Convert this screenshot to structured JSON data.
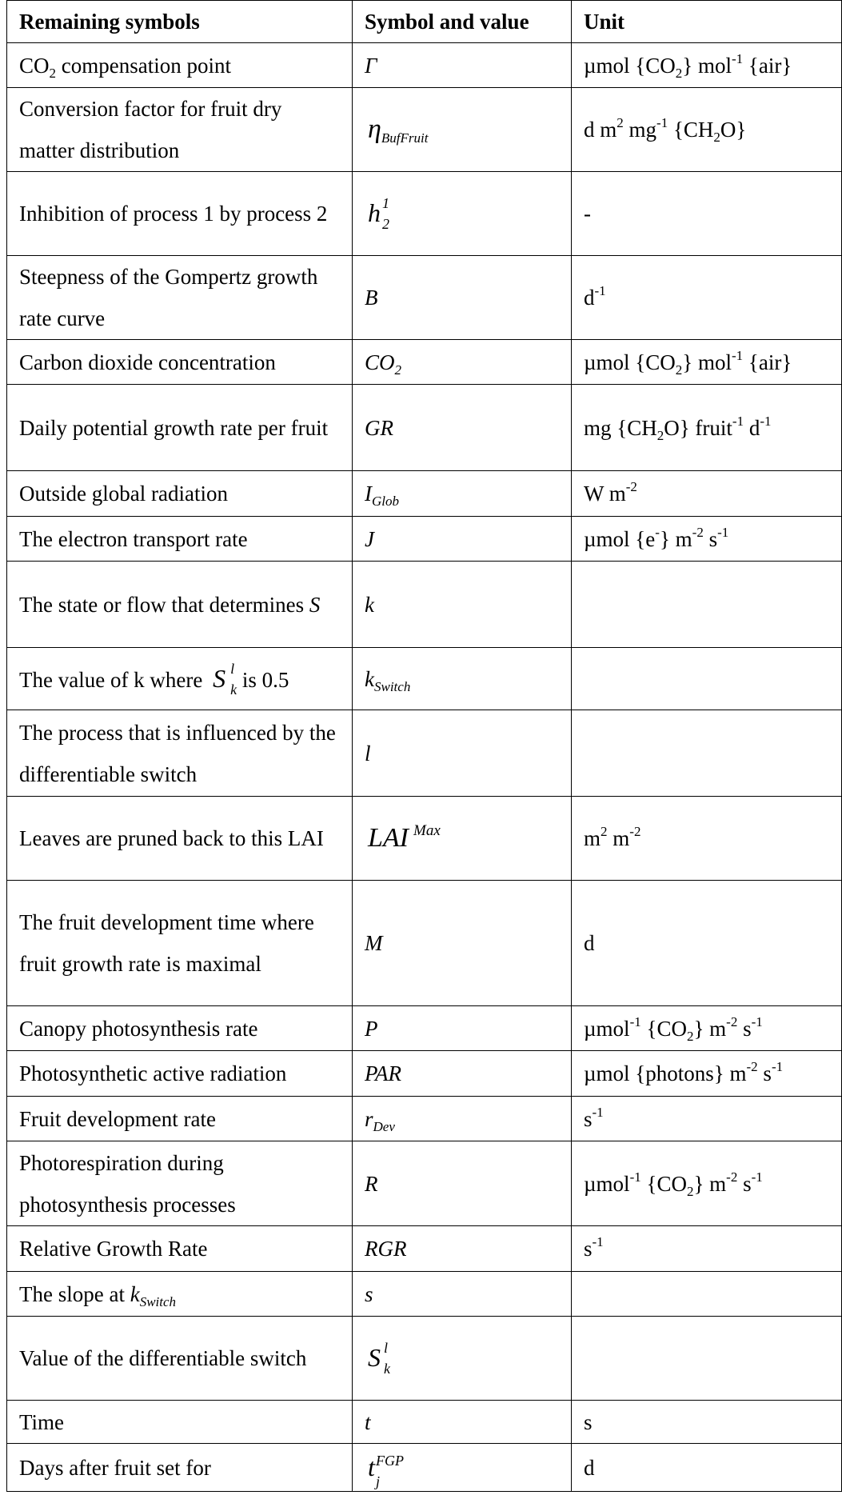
{
  "headers": {
    "col1": "Remaining symbols",
    "col2": "Symbol and value",
    "col3": "Unit"
  },
  "rows": [
    {
      "name": "CO₂ compensation point",
      "symbol": "Γ",
      "unit": "µmol {CO₂} mol⁻¹ {air}"
    },
    {
      "name": "Conversion factor for fruit dry matter distribution",
      "symbol": "η_BufFruit",
      "unit": "d m² mg⁻¹ {CH₂O}"
    },
    {
      "name": "Inhibition of process 1 by process 2",
      "symbol": "h₂¹",
      "unit": "-"
    },
    {
      "name": "Steepness of the Gompertz growth rate curve",
      "symbol": "B",
      "unit": "d⁻¹"
    },
    {
      "name": "Carbon dioxide concentration",
      "symbol": "CO₂",
      "unit": "µmol {CO₂} mol⁻¹ {air}"
    },
    {
      "name": "Daily potential growth rate per fruit",
      "symbol": "GR",
      "unit": "mg {CH₂O} fruit⁻¹ d⁻¹"
    },
    {
      "name": "Outside global radiation",
      "symbol": "I_Glob",
      "unit": "W m⁻²"
    },
    {
      "name": "The electron transport rate",
      "symbol": "J",
      "unit": "µmol {e⁻} m⁻² s⁻¹"
    },
    {
      "name": "The state or flow that determines S",
      "symbol": "k",
      "unit": ""
    },
    {
      "name": "The value of k where S_k^l is 0.5",
      "symbol": "k_Switch",
      "unit": ""
    },
    {
      "name": "The process that is influenced by the differentiable switch",
      "symbol": "l",
      "unit": ""
    },
    {
      "name": "Leaves are pruned back to this LAI",
      "symbol": "LAI^Max",
      "unit": "m² m⁻²"
    },
    {
      "name": "The fruit development time where fruit growth rate is maximal",
      "symbol": "M",
      "unit": "d"
    },
    {
      "name": "Canopy photosynthesis rate",
      "symbol": "P",
      "unit": "µmol⁻¹ {CO₂} m⁻² s⁻¹"
    },
    {
      "name": "Photosynthetic active radiation",
      "symbol": "PAR",
      "unit": "µmol {photons} m⁻² s⁻¹"
    },
    {
      "name": "Fruit development rate",
      "symbol": "r_Dev",
      "unit": "s⁻¹"
    },
    {
      "name": "Photorespiration during photosynthesis processes",
      "symbol": "R",
      "unit": "µmol⁻¹ {CO₂} m⁻² s⁻¹"
    },
    {
      "name": "Relative Growth Rate",
      "symbol": "RGR",
      "unit": "s⁻¹"
    },
    {
      "name": "The slope at k_Switch",
      "symbol": "s",
      "unit": ""
    },
    {
      "name": "Value of the differentiable switch",
      "symbol": "S_k^l",
      "unit": ""
    },
    {
      "name": "Time",
      "symbol": "t",
      "unit": "s"
    },
    {
      "name": "Days after fruit set for",
      "symbol": "t_j^FGP",
      "unit": "d"
    }
  ]
}
